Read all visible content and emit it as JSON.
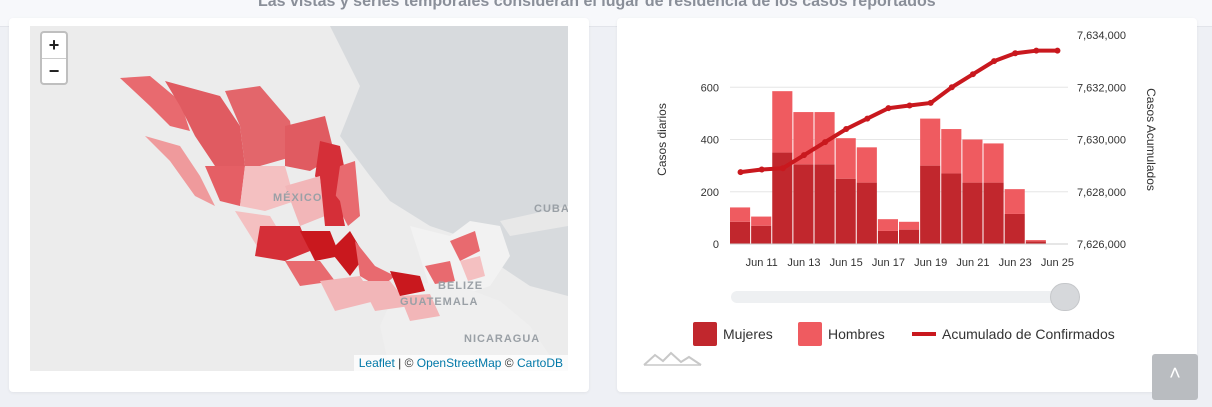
{
  "header": {
    "text": "Las vistas y series temporales consideran el lugar de residencia de los casos reportados"
  },
  "map": {
    "zoom_in": "+",
    "zoom_out": "−",
    "labels": [
      "MÉXICO",
      "CUBA",
      "BELIZE",
      "GUATEMALA",
      "NICARAGUA"
    ],
    "attribution": {
      "leaflet": "Leaflet",
      "sep1": " | © ",
      "osm": "OpenStreetMap",
      "sep2": " © ",
      "carto": "CartoDB"
    }
  },
  "legend": {
    "women": "Mujeres",
    "men": "Hombres",
    "cumulative": "Acumulado de Confirmados"
  },
  "colors": {
    "women": "#c1272d",
    "men": "#ef5b60",
    "cumulative": "#c9181e"
  },
  "scroll_top": "˄",
  "chart_data": {
    "type": "bar",
    "y_left_label": "Casos diarios",
    "y_right_label": "Casos Acumulados",
    "y_left_ticks": [
      "0",
      "200",
      "400",
      "600"
    ],
    "y_left_range": [
      0,
      800
    ],
    "y_right_ticks": [
      "7,626,000",
      "7,628,000",
      "7,630,000",
      "7,632,000",
      "7,634,000"
    ],
    "y_right_range": [
      7626000,
      7634000
    ],
    "x_tick_labels": [
      "Jun 11",
      "Jun 13",
      "Jun 15",
      "Jun 17",
      "Jun 19",
      "Jun 21",
      "Jun 23",
      "Jun 25"
    ],
    "categories": [
      "Jun 10",
      "Jun 11",
      "Jun 12",
      "Jun 13",
      "Jun 14",
      "Jun 15",
      "Jun 16",
      "Jun 17",
      "Jun 18",
      "Jun 19",
      "Jun 20",
      "Jun 21",
      "Jun 22",
      "Jun 23",
      "Jun 24",
      "Jun 25"
    ],
    "stacked": true,
    "series": [
      {
        "name": "Mujeres",
        "values": [
          85,
          70,
          350,
          305,
          305,
          250,
          235,
          50,
          55,
          300,
          270,
          235,
          235,
          115,
          10,
          0
        ]
      },
      {
        "name": "Hombres",
        "values": [
          55,
          35,
          235,
          200,
          200,
          155,
          135,
          45,
          30,
          180,
          170,
          165,
          150,
          95,
          5,
          0
        ]
      },
      {
        "name": "Acumulado de Confirmados",
        "axis": "right",
        "values": [
          7628750,
          7628850,
          7628900,
          7629400,
          7629900,
          7630400,
          7630800,
          7631200,
          7631300,
          7631400,
          7632000,
          7632500,
          7633000,
          7633300,
          7633400,
          7633400
        ]
      }
    ]
  }
}
